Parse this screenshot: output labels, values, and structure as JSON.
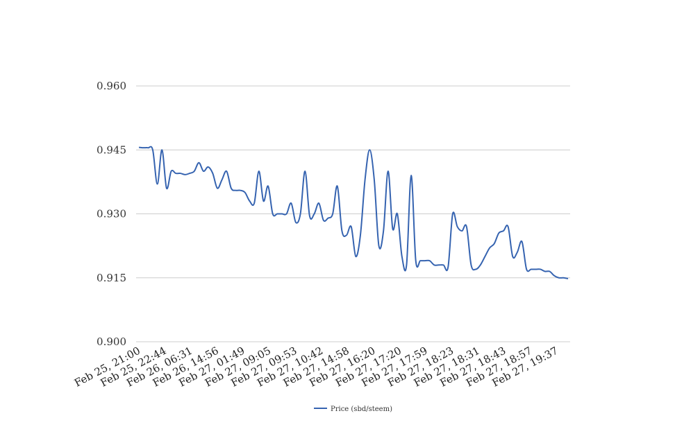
{
  "chart_data": {
    "type": "line",
    "title": "",
    "xlabel": "",
    "ylabel": "",
    "ylim": [
      0.9,
      0.96
    ],
    "yticks": [
      "0.960",
      "0.945",
      "0.930",
      "0.915",
      "0.900"
    ],
    "ytick_values": [
      0.96,
      0.945,
      0.93,
      0.915,
      0.9
    ],
    "grid": true,
    "legend": "bottom-center",
    "xtick_labels": [
      "Feb 25, 21:00",
      "Feb 25, 22:44",
      "Feb 26, 06:31",
      "Feb 26, 14:56",
      "Feb 27, 01:49",
      "Feb 27, 09:05",
      "Feb 27, 09:53",
      "Feb 27, 10:42",
      "Feb 27, 14:58",
      "Feb 27, 16:20",
      "Feb 27, 17:20",
      "Feb 27, 17:59",
      "Feb 27, 18:23",
      "Feb 27, 18:31",
      "Feb 27, 18:43",
      "Feb 27, 18:57",
      "Feb 27, 19:37"
    ],
    "series": [
      {
        "name": "Price (sbd/steem)",
        "color": "#3563b0",
        "values": [
          0.9456,
          0.9455,
          0.9455,
          0.945,
          0.937,
          0.945,
          0.936,
          0.94,
          0.9395,
          0.9395,
          0.9392,
          0.9395,
          0.94,
          0.942,
          0.94,
          0.941,
          0.9395,
          0.936,
          0.938,
          0.94,
          0.936,
          0.9355,
          0.9355,
          0.935,
          0.933,
          0.9325,
          0.94,
          0.933,
          0.9365,
          0.93,
          0.93,
          0.93,
          0.93,
          0.9325,
          0.928,
          0.93,
          0.94,
          0.9295,
          0.93,
          0.9325,
          0.9285,
          0.929,
          0.93,
          0.9365,
          0.926,
          0.925,
          0.927,
          0.92,
          0.925,
          0.938,
          0.945,
          0.938,
          0.9225,
          0.926,
          0.94,
          0.9265,
          0.93,
          0.92,
          0.918,
          0.939,
          0.919,
          0.919,
          0.919,
          0.919,
          0.918,
          0.918,
          0.918,
          0.9175,
          0.93,
          0.927,
          0.926,
          0.927,
          0.918,
          0.917,
          0.918,
          0.92,
          0.922,
          0.923,
          0.9255,
          0.926,
          0.927,
          0.92,
          0.921,
          0.9235,
          0.917,
          0.917,
          0.917,
          0.917,
          0.9165,
          0.9165,
          0.9155,
          0.915,
          0.915,
          0.9148
        ]
      }
    ]
  }
}
